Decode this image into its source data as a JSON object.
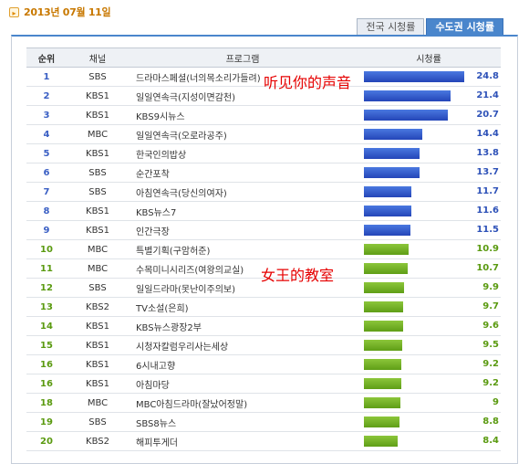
{
  "header": {
    "date": "2013년 07월 11일",
    "date_icon": "arrow-right-icon"
  },
  "tabs": [
    {
      "label": "전국 시청률",
      "active": false
    },
    {
      "label": "수도권 시청률",
      "active": true
    }
  ],
  "table": {
    "columns": {
      "rank": "순위",
      "channel": "채널",
      "program": "프로그램",
      "rating": "시청률"
    },
    "rows": [
      {
        "rank": "1",
        "channel": "SBS",
        "program": "드라마스페셜(너의목소리가들려)",
        "rating": 24.8,
        "rating_label": "24.8"
      },
      {
        "rank": "2",
        "channel": "KBS1",
        "program": "일일연속극(지성이면감천)",
        "rating": 21.4,
        "rating_label": "21.4"
      },
      {
        "rank": "3",
        "channel": "KBS1",
        "program": "KBS9시뉴스",
        "rating": 20.7,
        "rating_label": "20.7"
      },
      {
        "rank": "4",
        "channel": "MBC",
        "program": "일일연속극(오로라공주)",
        "rating": 14.4,
        "rating_label": "14.4"
      },
      {
        "rank": "5",
        "channel": "KBS1",
        "program": "한국인의밥상",
        "rating": 13.8,
        "rating_label": "13.8"
      },
      {
        "rank": "6",
        "channel": "SBS",
        "program": "순간포착",
        "rating": 13.7,
        "rating_label": "13.7"
      },
      {
        "rank": "7",
        "channel": "SBS",
        "program": "아침연속극(당신의여자)",
        "rating": 11.7,
        "rating_label": "11.7"
      },
      {
        "rank": "8",
        "channel": "KBS1",
        "program": "KBS뉴스7",
        "rating": 11.6,
        "rating_label": "11.6"
      },
      {
        "rank": "9",
        "channel": "KBS1",
        "program": "인간극장",
        "rating": 11.5,
        "rating_label": "11.5"
      },
      {
        "rank": "10",
        "channel": "MBC",
        "program": "특별기획(구암허준)",
        "rating": 10.9,
        "rating_label": "10.9"
      },
      {
        "rank": "11",
        "channel": "MBC",
        "program": "수목미니시리즈(여왕의교실)",
        "rating": 10.7,
        "rating_label": "10.7"
      },
      {
        "rank": "12",
        "channel": "SBS",
        "program": "일일드라마(못난이주의보)",
        "rating": 9.9,
        "rating_label": "9.9"
      },
      {
        "rank": "13",
        "channel": "KBS2",
        "program": "TV소설(은희)",
        "rating": 9.7,
        "rating_label": "9.7"
      },
      {
        "rank": "14",
        "channel": "KBS1",
        "program": "KBS뉴스광장2부",
        "rating": 9.6,
        "rating_label": "9.6"
      },
      {
        "rank": "15",
        "channel": "KBS1",
        "program": "시청자칼럼우리사는세상",
        "rating": 9.5,
        "rating_label": "9.5"
      },
      {
        "rank": "16",
        "channel": "KBS1",
        "program": "6시내고향",
        "rating": 9.2,
        "rating_label": "9.2"
      },
      {
        "rank": "16",
        "channel": "KBS1",
        "program": "아침마당",
        "rating": 9.2,
        "rating_label": "9.2"
      },
      {
        "rank": "18",
        "channel": "MBC",
        "program": "MBC아침드라마(잘났어정말)",
        "rating": 9.0,
        "rating_label": "9"
      },
      {
        "rank": "19",
        "channel": "SBS",
        "program": "SBS8뉴스",
        "rating": 8.8,
        "rating_label": "8.8"
      },
      {
        "rank": "20",
        "channel": "KBS2",
        "program": "해피투게더",
        "rating": 8.4,
        "rating_label": "8.4"
      }
    ],
    "colors": {
      "top_bar": "#2e52c8",
      "low_bar": "#6aaa1e"
    }
  },
  "annotations": [
    {
      "text": "听见你的声音"
    },
    {
      "text": "女王的教室"
    }
  ]
}
